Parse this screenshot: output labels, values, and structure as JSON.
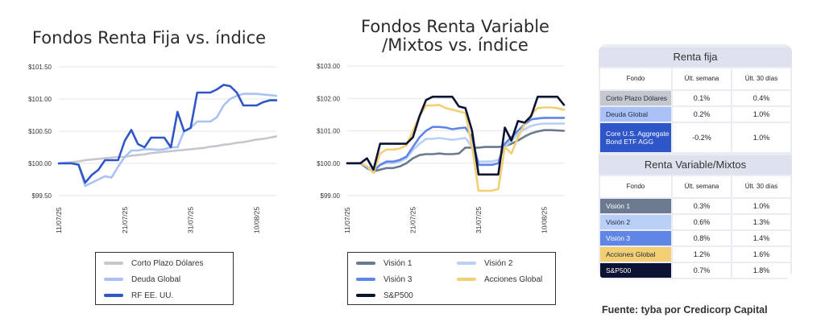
{
  "titles": {
    "left": "Fondos Renta Fija vs. índice",
    "middle": "Fondos Renta Variable /Mixtos vs. índice"
  },
  "source": "Fuente: tyba por Credicorp Capital",
  "colors": {
    "Corto Plazo Dólares": "#c4c7cc",
    "Deuda Global": "#a9c1f4",
    "RF EE. UU.": "#2f56c9",
    "Visión 1": "#6b7a8f",
    "Visión 2": "#b9cff6",
    "Visión 3": "#5f86e6",
    "Acciones Global": "#f2cf73",
    "S&P500": "#0b1232"
  },
  "chart_data": [
    {
      "type": "line",
      "title": "Fondos Renta Fija vs. índice",
      "x": [
        "11/07/25",
        "12/07/25",
        "13/07/25",
        "14/07/25",
        "15/07/25",
        "16/07/25",
        "17/07/25",
        "18/07/25",
        "19/07/25",
        "20/07/25",
        "21/07/25",
        "22/07/25",
        "23/07/25",
        "24/07/25",
        "25/07/25",
        "26/07/25",
        "27/07/25",
        "28/07/25",
        "29/07/25",
        "30/07/25",
        "31/07/25",
        "01/08/25",
        "02/08/25",
        "03/08/25",
        "04/08/25",
        "05/08/25",
        "06/08/25",
        "07/08/25",
        "08/08/25",
        "09/08/25",
        "10/08/25",
        "11/08/25",
        "12/08/25",
        "13/08/25"
      ],
      "x_ticks": [
        "11/07/25",
        "21/07/25",
        "31/07/25",
        "10/08/25"
      ],
      "y_ticks": [
        "$99.50",
        "$100.00",
        "$100.50",
        "$101.00",
        "$101.50"
      ],
      "ylim": [
        99.5,
        101.5
      ],
      "legend_position": "bottom",
      "series": [
        {
          "name": "Corto Plazo Dólares",
          "values": [
            100.0,
            100.01,
            100.02,
            100.03,
            100.05,
            100.06,
            100.07,
            100.08,
            100.09,
            100.1,
            100.1,
            100.12,
            100.13,
            100.14,
            100.16,
            100.17,
            100.18,
            100.19,
            100.2,
            100.21,
            100.22,
            100.23,
            100.24,
            100.26,
            100.27,
            100.29,
            100.3,
            100.32,
            100.33,
            100.35,
            100.37,
            100.38,
            100.4,
            100.42
          ]
        },
        {
          "name": "Deuda Global",
          "values": [
            100.0,
            100.01,
            100.0,
            99.98,
            99.65,
            99.7,
            99.75,
            99.8,
            99.78,
            99.95,
            100.1,
            100.2,
            100.2,
            100.22,
            100.22,
            100.21,
            100.22,
            100.25,
            100.25,
            100.5,
            100.55,
            100.65,
            100.65,
            100.65,
            100.72,
            100.9,
            101.0,
            101.05,
            101.08,
            101.08,
            101.08,
            101.07,
            101.06,
            101.05
          ]
        },
        {
          "name": "RF EE. UU.",
          "values": [
            100.0,
            100.0,
            100.0,
            99.98,
            99.7,
            99.82,
            99.9,
            100.05,
            100.05,
            100.05,
            100.35,
            100.52,
            100.3,
            100.25,
            100.4,
            100.4,
            100.4,
            100.25,
            100.8,
            100.5,
            100.55,
            101.1,
            101.1,
            101.1,
            101.15,
            101.22,
            101.2,
            101.1,
            100.9,
            100.9,
            100.9,
            100.95,
            100.98,
            100.98
          ]
        }
      ]
    },
    {
      "type": "line",
      "title": "Fondos Renta Variable /Mixtos vs. índice",
      "x": [
        "11/07/25",
        "12/07/25",
        "13/07/25",
        "14/07/25",
        "15/07/25",
        "16/07/25",
        "17/07/25",
        "18/07/25",
        "19/07/25",
        "20/07/25",
        "21/07/25",
        "22/07/25",
        "23/07/25",
        "24/07/25",
        "25/07/25",
        "26/07/25",
        "27/07/25",
        "28/07/25",
        "29/07/25",
        "30/07/25",
        "31/07/25",
        "01/08/25",
        "02/08/25",
        "03/08/25",
        "04/08/25",
        "05/08/25",
        "06/08/25",
        "07/08/25",
        "08/08/25",
        "09/08/25",
        "10/08/25",
        "11/08/25",
        "12/08/25",
        "13/08/25"
      ],
      "x_ticks": [
        "11/07/25",
        "21/07/25",
        "31/07/25",
        "10/08/25"
      ],
      "y_ticks": [
        "$99.00",
        "$100.00",
        "$101.00",
        "$102.00",
        "$103.00"
      ],
      "ylim": [
        99.0,
        103.0
      ],
      "legend_position": "bottom",
      "series": [
        {
          "name": "Visión 1",
          "values": [
            100.0,
            100.0,
            100.0,
            99.85,
            99.75,
            99.8,
            99.85,
            99.85,
            99.9,
            100.0,
            100.15,
            100.25,
            100.28,
            100.28,
            100.3,
            100.28,
            100.28,
            100.3,
            100.48,
            100.48,
            100.48,
            100.5,
            100.5,
            100.5,
            100.52,
            100.6,
            100.7,
            100.82,
            100.92,
            100.98,
            101.02,
            101.02,
            101.01,
            101.0
          ]
        },
        {
          "name": "Visión 2",
          "values": [
            100.0,
            100.0,
            100.0,
            99.9,
            99.8,
            99.95,
            100.0,
            100.0,
            100.05,
            100.15,
            100.4,
            100.6,
            100.75,
            100.75,
            100.78,
            100.75,
            100.72,
            100.75,
            100.78,
            100.5,
            100.05,
            100.05,
            100.05,
            100.1,
            100.5,
            100.7,
            100.9,
            101.05,
            101.15,
            101.2,
            101.22,
            101.22,
            101.22,
            101.22
          ]
        },
        {
          "name": "Visión 3",
          "values": [
            100.0,
            100.0,
            100.0,
            99.85,
            99.75,
            99.95,
            100.05,
            100.05,
            100.1,
            100.2,
            100.5,
            100.8,
            101.0,
            101.12,
            101.12,
            101.1,
            101.05,
            101.08,
            101.1,
            100.8,
            99.95,
            99.95,
            99.95,
            100.0,
            100.6,
            100.8,
            101.0,
            101.2,
            101.35,
            101.38,
            101.4,
            101.4,
            101.4,
            101.4
          ]
        },
        {
          "name": "Acciones Global",
          "values": [
            100.0,
            100.0,
            100.0,
            99.9,
            99.7,
            100.3,
            100.42,
            100.42,
            100.45,
            100.55,
            101.0,
            101.45,
            101.78,
            101.78,
            101.8,
            101.7,
            101.65,
            101.6,
            101.55,
            100.5,
            99.15,
            99.15,
            99.15,
            99.2,
            100.5,
            100.3,
            100.8,
            101.2,
            101.5,
            101.7,
            101.72,
            101.72,
            101.7,
            101.65
          ]
        },
        {
          "name": "S&P500",
          "values": [
            100.0,
            100.0,
            100.0,
            100.15,
            99.8,
            100.6,
            100.6,
            100.6,
            100.6,
            100.6,
            100.8,
            101.45,
            101.95,
            102.05,
            102.05,
            102.05,
            102.05,
            101.75,
            101.7,
            101.0,
            99.65,
            99.65,
            99.65,
            99.65,
            101.1,
            100.7,
            101.3,
            101.25,
            101.45,
            102.05,
            102.05,
            102.05,
            102.05,
            101.8
          ]
        }
      ]
    },
    {
      "type": "table",
      "sections": [
        {
          "heading": "Renta fija",
          "columns": [
            "Fondo",
            "Últ. semana",
            "Últ. 30 días"
          ],
          "rows": [
            {
              "fund": "Corto Plazo Dólares",
              "week": "0.1%",
              "month": "0.4%",
              "color": "#c4c7cc",
              "text_color": "#1f2a44"
            },
            {
              "fund": "Deuda Global",
              "week": "0.2%",
              "month": "1.0%",
              "color": "#a9c1f4",
              "text_color": "#1f2a44"
            },
            {
              "fund": "Core U.S. Aggregate Bond ETF AGG",
              "week": "-0.2%",
              "month": "1.0%",
              "color": "#2f56c9",
              "text_color": "#ffffff"
            }
          ]
        },
        {
          "heading": "Renta Variable/Mixtos",
          "columns": [
            "Fondo",
            "Últ. semana",
            "Últ. 30 días"
          ],
          "rows": [
            {
              "fund": "Visión 1",
              "week": "0.3%",
              "month": "1.0%",
              "color": "#6b7a8f",
              "text_color": "#ffffff"
            },
            {
              "fund": "Visión 2",
              "week": "0.6%",
              "month": "1.3%",
              "color": "#b9cff6",
              "text_color": "#1f2a44"
            },
            {
              "fund": "Visión 3",
              "week": "0.8%",
              "month": "1.4%",
              "color": "#5f86e6",
              "text_color": "#ffffff"
            },
            {
              "fund": "Acciones Global",
              "week": "1.2%",
              "month": "1.6%",
              "color": "#f2cf73",
              "text_color": "#1f2a44"
            },
            {
              "fund": "S&P500",
              "week": "0.7%",
              "month": "1.8%",
              "color": "#0b1232",
              "text_color": "#ffffff"
            }
          ]
        }
      ]
    }
  ]
}
